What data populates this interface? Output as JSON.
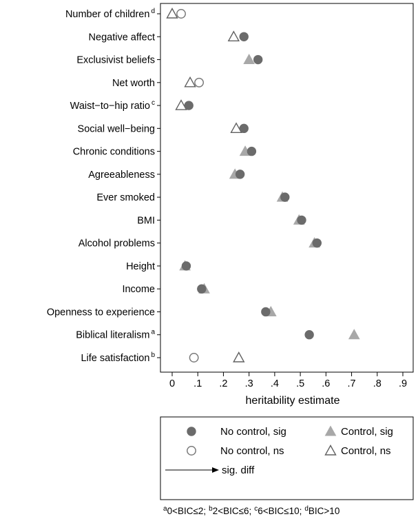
{
  "chart_data": {
    "type": "scatter",
    "orientation": "horizontal",
    "xlabel": "heritability estimate",
    "xlim": [
      -0.08,
      0.92
    ],
    "x_ticks": [
      0,
      0.1,
      0.2,
      0.3,
      0.4,
      0.5,
      0.6,
      0.7,
      0.8,
      0.9
    ],
    "x_tick_labels": [
      "0",
      ".1",
      ".2",
      ".3",
      ".4",
      ".5",
      ".6",
      ".7",
      ".8",
      ".9"
    ],
    "grid": false,
    "legend_position": "bottom",
    "categories": [
      {
        "label": "Number of children",
        "sup": "d"
      },
      {
        "label": "Negative affect",
        "sup": ""
      },
      {
        "label": "Exclusivist beliefs",
        "sup": ""
      },
      {
        "label": "Net worth",
        "sup": ""
      },
      {
        "label": "Waist−to−hip ratio",
        "sup": "c"
      },
      {
        "label": "Social well−being",
        "sup": ""
      },
      {
        "label": "Chronic conditions",
        "sup": ""
      },
      {
        "label": "Agreeableness",
        "sup": ""
      },
      {
        "label": "Ever smoked",
        "sup": ""
      },
      {
        "label": "BMI",
        "sup": ""
      },
      {
        "label": "Alcohol problems",
        "sup": ""
      },
      {
        "label": "Height",
        "sup": ""
      },
      {
        "label": "Income",
        "sup": ""
      },
      {
        "label": "Openness to experience",
        "sup": ""
      },
      {
        "label": "Biblical literalism",
        "sup": "a"
      },
      {
        "label": "Life satisfaction",
        "sup": "b"
      }
    ],
    "series": [
      {
        "name": "No control, sig",
        "marker": "circle",
        "filled": true,
        "color": "#6b6b6b",
        "values": [
          null,
          0.28,
          0.335,
          null,
          0.065,
          0.28,
          0.31,
          0.265,
          0.44,
          0.505,
          0.565,
          0.055,
          0.115,
          0.365,
          0.535,
          null
        ]
      },
      {
        "name": "No control, ns",
        "marker": "circle",
        "filled": false,
        "color": "#7a7a7a",
        "values": [
          0.035,
          null,
          null,
          0.105,
          null,
          null,
          null,
          null,
          null,
          null,
          null,
          null,
          null,
          null,
          null,
          0.085
        ]
      },
      {
        "name": "Control, sig",
        "marker": "triangle",
        "filled": true,
        "color": "#a8a8a8",
        "values": [
          null,
          null,
          0.3,
          null,
          null,
          null,
          0.285,
          0.245,
          0.43,
          0.495,
          0.555,
          0.05,
          0.125,
          0.385,
          0.71,
          null
        ]
      },
      {
        "name": "Control, ns",
        "marker": "triangle",
        "filled": false,
        "color": "#606060",
        "values": [
          0.0,
          0.24,
          null,
          0.07,
          0.035,
          0.25,
          null,
          null,
          null,
          null,
          null,
          null,
          null,
          null,
          null,
          0.26
        ]
      }
    ],
    "legend": {
      "entries": [
        {
          "label": "No control, sig",
          "series": 0
        },
        {
          "label": "Control, sig",
          "series": 2
        },
        {
          "label": "No control, ns",
          "series": 1
        },
        {
          "label": "Control, ns",
          "series": 3
        }
      ],
      "arrow_label": "sig. diff"
    },
    "footnote": [
      {
        "sup": "a",
        "text": "0<BIC≤2;"
      },
      {
        "sup": "b",
        "text": "2<BIC≤6;"
      },
      {
        "sup": "c",
        "text": "6<BIC≤10;"
      },
      {
        "sup": "d",
        "text": "BIC>10"
      }
    ]
  }
}
